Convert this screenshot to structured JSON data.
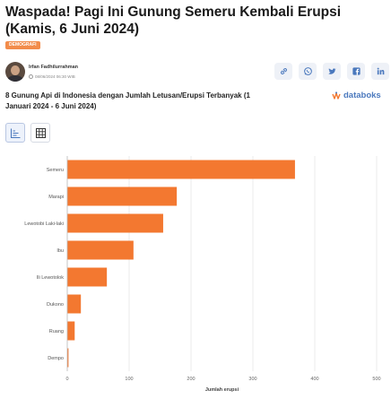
{
  "article": {
    "headline": "Waspada! Pagi Ini Gunung Semeru Kembali Erupsi (Kamis, 6 Juni 2024)",
    "category": "DEMOGRAFI",
    "author": "Irfan Fadhilurrahman",
    "publish_date": "08/06/2024 06:30 WIB"
  },
  "share": {
    "items": [
      {
        "name": "link-icon"
      },
      {
        "name": "whatsapp-icon"
      },
      {
        "name": "twitter-icon"
      },
      {
        "name": "facebook-icon"
      },
      {
        "name": "linkedin-icon"
      }
    ]
  },
  "brand": {
    "logo_text": "databoks",
    "accent": "#4a78bd"
  },
  "view_toggle": {
    "options": [
      "chart-view",
      "table-view"
    ],
    "active": "chart-view"
  },
  "colors": {
    "bar": "#f37830",
    "badge": "#f28c4b"
  },
  "chart_data": {
    "type": "bar",
    "orientation": "horizontal",
    "title": "8 Gunung Api di Indonesia dengan Jumlah Letusan/Erupsi Terbanyak (1 Januari 2024 - 6 Juni 2024)",
    "categories": [
      "Semeru",
      "Marapi",
      "Lewotobi Laki-laki",
      "Ibu",
      "Ili Lewotolok",
      "Dukono",
      "Ruang",
      "Dempo"
    ],
    "values": [
      368,
      177,
      155,
      107,
      64,
      22,
      12,
      2
    ],
    "xlabel": "Jumlah erupsi",
    "ylabel": "",
    "xlim": [
      0,
      500
    ],
    "ticks": [
      0,
      100,
      200,
      300,
      400,
      500
    ],
    "grid": true,
    "legend": "none"
  }
}
